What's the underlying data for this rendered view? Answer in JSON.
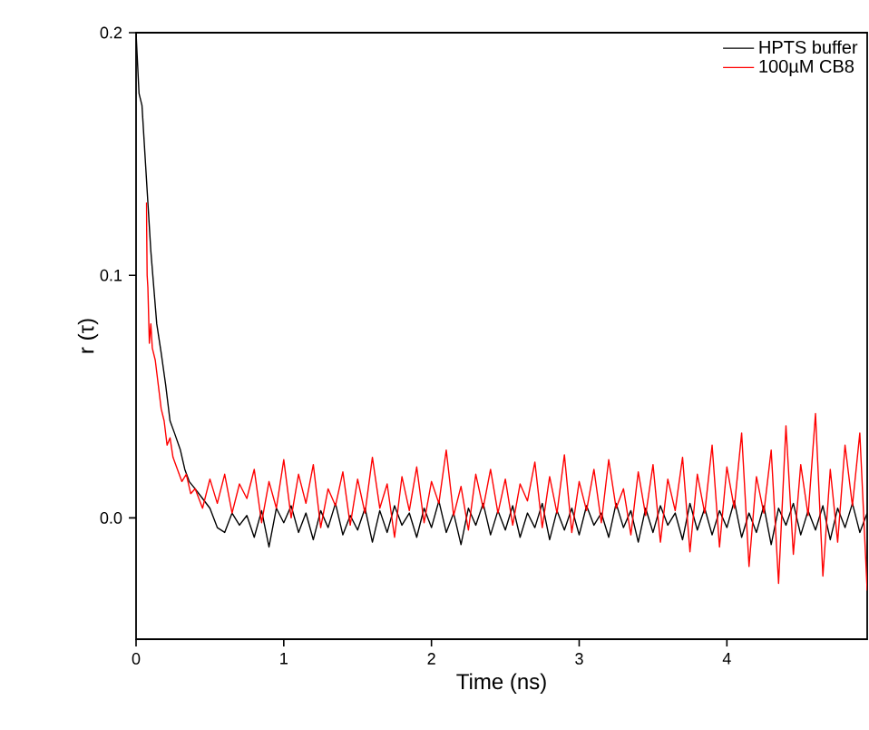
{
  "chart_data": {
    "type": "line",
    "xlabel": "Time (ns)",
    "ylabel": "r (τ)",
    "xlim": [
      0,
      4.95
    ],
    "ylim": [
      -0.05,
      0.2
    ],
    "xticks": [
      0,
      1,
      2,
      3,
      4
    ],
    "yticks": [
      {
        "value": 0,
        "label": "0.0"
      },
      {
        "value": 0.1,
        "label": "0.1"
      },
      {
        "value": 0.2,
        "label": "0.2"
      }
    ],
    "legend": "top right",
    "grid": false,
    "marker": "none",
    "line_style": "solid",
    "series": [
      {
        "name": "HPTS buffer",
        "color": "#000000",
        "x": [
          0,
          0.02,
          0.04,
          0.06,
          0.08,
          0.1,
          0.12,
          0.14,
          0.17,
          0.2,
          0.23,
          0.26,
          0.3,
          0.33,
          0.36,
          0.4,
          0.45,
          0.5,
          0.55,
          0.6,
          0.65,
          0.7,
          0.75,
          0.8,
          0.85,
          0.9,
          0.95,
          1,
          1.05,
          1.1,
          1.15,
          1.2,
          1.25,
          1.3,
          1.35,
          1.4,
          1.45,
          1.5,
          1.55,
          1.6,
          1.65,
          1.7,
          1.75,
          1.8,
          1.85,
          1.9,
          1.95,
          2,
          2.05,
          2.1,
          2.15,
          2.2,
          2.25,
          2.3,
          2.35,
          2.4,
          2.45,
          2.5,
          2.55,
          2.6,
          2.65,
          2.7,
          2.75,
          2.8,
          2.85,
          2.9,
          2.95,
          3,
          3.05,
          3.1,
          3.15,
          3.2,
          3.25,
          3.3,
          3.35,
          3.4,
          3.45,
          3.5,
          3.55,
          3.6,
          3.65,
          3.7,
          3.75,
          3.8,
          3.85,
          3.9,
          3.95,
          4,
          4.05,
          4.1,
          4.15,
          4.2,
          4.25,
          4.3,
          4.35,
          4.4,
          4.45,
          4.5,
          4.55,
          4.6,
          4.65,
          4.7,
          4.75,
          4.8,
          4.85,
          4.9,
          4.95
        ],
        "values": [
          0.2,
          0.175,
          0.17,
          0.15,
          0.13,
          0.11,
          0.095,
          0.08,
          0.068,
          0.055,
          0.04,
          0.035,
          0.028,
          0.02,
          0.015,
          0.012,
          0.008,
          0.004,
          -0.004,
          -0.006,
          0.002,
          -0.003,
          0.001,
          -0.008,
          0.003,
          -0.012,
          0.004,
          -0.002,
          0.005,
          -0.006,
          0.002,
          -0.009,
          0.003,
          -0.004,
          0.006,
          -0.007,
          0.001,
          -0.005,
          0.004,
          -0.01,
          0.003,
          -0.006,
          0.005,
          -0.003,
          0.002,
          -0.008,
          0.004,
          -0.004,
          0.007,
          -0.006,
          0.002,
          -0.011,
          0.004,
          -0.003,
          0.006,
          -0.007,
          0.003,
          -0.005,
          0.005,
          -0.008,
          0.002,
          -0.004,
          0.006,
          -0.009,
          0.003,
          -0.005,
          0.004,
          -0.007,
          0.005,
          -0.003,
          0.002,
          -0.008,
          0.006,
          -0.004,
          0.003,
          -0.01,
          0.004,
          -0.006,
          0.005,
          -0.003,
          0.002,
          -0.009,
          0.006,
          -0.005,
          0.004,
          -0.007,
          0.003,
          -0.004,
          0.007,
          -0.008,
          0.002,
          -0.006,
          0.005,
          -0.011,
          0.004,
          -0.003,
          0.006,
          -0.007,
          0.003,
          -0.005,
          0.005,
          -0.009,
          0.004,
          -0.004,
          0.006,
          -0.006,
          0.002
        ]
      },
      {
        "name": "100µM CB8",
        "color": "#ff0000",
        "x": [
          0.07,
          0.075,
          0.08,
          0.09,
          0.1,
          0.11,
          0.13,
          0.15,
          0.17,
          0.19,
          0.21,
          0.23,
          0.25,
          0.28,
          0.31,
          0.34,
          0.37,
          0.4,
          0.45,
          0.5,
          0.55,
          0.6,
          0.65,
          0.7,
          0.75,
          0.8,
          0.85,
          0.9,
          0.95,
          1,
          1.05,
          1.1,
          1.15,
          1.2,
          1.25,
          1.3,
          1.35,
          1.4,
          1.45,
          1.5,
          1.55,
          1.6,
          1.65,
          1.7,
          1.75,
          1.8,
          1.85,
          1.9,
          1.95,
          2,
          2.05,
          2.1,
          2.15,
          2.2,
          2.25,
          2.3,
          2.35,
          2.4,
          2.45,
          2.5,
          2.55,
          2.6,
          2.65,
          2.7,
          2.75,
          2.8,
          2.85,
          2.9,
          2.95,
          3,
          3.05,
          3.1,
          3.15,
          3.2,
          3.25,
          3.3,
          3.35,
          3.4,
          3.45,
          3.5,
          3.55,
          3.6,
          3.65,
          3.7,
          3.75,
          3.8,
          3.85,
          3.9,
          3.95,
          4,
          4.05,
          4.1,
          4.15,
          4.2,
          4.25,
          4.3,
          4.35,
          4.4,
          4.45,
          4.5,
          4.55,
          4.6,
          4.65,
          4.7,
          4.75,
          4.8,
          4.85,
          4.9,
          4.95
        ],
        "values": [
          0.13,
          0.1,
          0.095,
          0.072,
          0.08,
          0.07,
          0.065,
          0.055,
          0.045,
          0.04,
          0.03,
          0.033,
          0.025,
          0.02,
          0.015,
          0.018,
          0.01,
          0.012,
          0.004,
          0.016,
          0.006,
          0.018,
          0.002,
          0.014,
          0.008,
          0.02,
          -0.002,
          0.015,
          0.004,
          0.024,
          0.0,
          0.018,
          0.006,
          0.022,
          -0.004,
          0.012,
          0.005,
          0.019,
          -0.003,
          0.016,
          0.002,
          0.025,
          0.004,
          0.014,
          -0.008,
          0.017,
          0.003,
          0.021,
          -0.002,
          0.015,
          0.006,
          0.028,
          0.001,
          0.013,
          -0.005,
          0.018,
          0.004,
          0.02,
          0.002,
          0.016,
          -0.003,
          0.014,
          0.007,
          0.023,
          -0.004,
          0.017,
          0.002,
          0.026,
          -0.006,
          0.015,
          0.003,
          0.02,
          -0.002,
          0.024,
          0.004,
          0.012,
          -0.007,
          0.019,
          0.001,
          0.022,
          -0.01,
          0.016,
          0.003,
          0.025,
          -0.014,
          0.018,
          0.002,
          0.03,
          -0.012,
          0.021,
          0.004,
          0.035,
          -0.02,
          0.017,
          0.002,
          0.028,
          -0.027,
          0.038,
          -0.015,
          0.022,
          0.001,
          0.043,
          -0.024,
          0.02,
          -0.01,
          0.03,
          0.005,
          0.035,
          -0.03
        ]
      }
    ]
  }
}
